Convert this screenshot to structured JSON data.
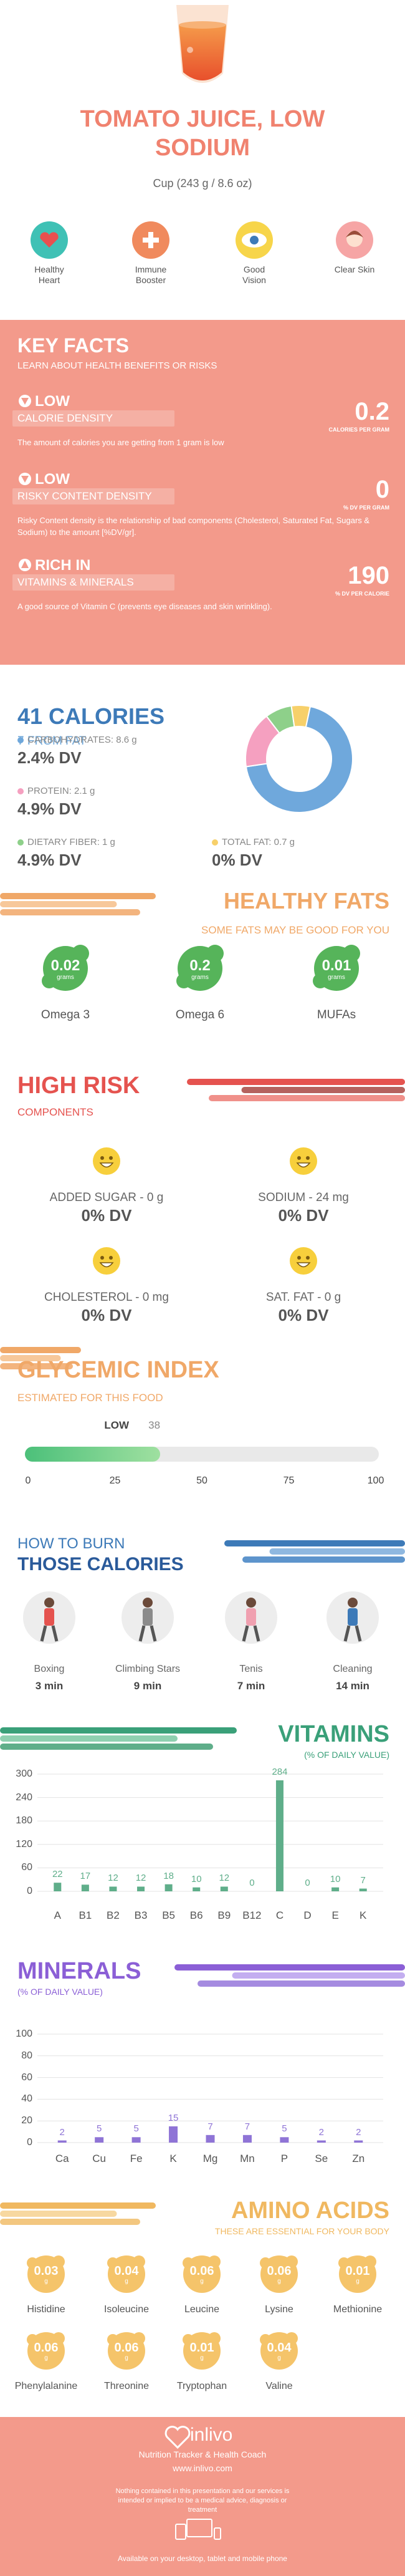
{
  "header": {
    "title": "TOMATO JUICE, LOW SODIUM",
    "serving": "Cup (243 g / 8.6 oz)"
  },
  "benefits": [
    "Healthy Heart",
    "Immune Booster",
    "Good Vision",
    "Clear Skin"
  ],
  "key_facts": {
    "title": "KEY FACTS",
    "subtitle": "LEARN ABOUT HEALTH BENEFITS OR RISKS",
    "items": [
      {
        "level": "LOW",
        "name": "CALORIE DENSITY",
        "value": 0.2,
        "unit": "CALORIES PER GRAM",
        "description": "The amount of calories you are getting from 1 gram is low"
      },
      {
        "level": "LOW",
        "name": "RISKY CONTENT DENSITY",
        "value": 0,
        "unit": "% DV PER GRAM",
        "description": "Risky Content density is the relationship of bad components (Cholesterol, Saturated Fat, Sugars & Sodium) to the amount [%DV/gr]."
      },
      {
        "level": "RICH IN",
        "name": "VITAMINS & MINERALS",
        "value": 190,
        "unit": "% DV PER CALORIE",
        "description": "A good source of Vitamin C (prevents eye diseases and skin wrinkling)."
      }
    ]
  },
  "calories": {
    "title": "41 CALORIES",
    "subtitle": "7 FROM FAT",
    "nutrients": [
      {
        "label": "CARBOHYDRATES: 8.6 g",
        "grams": 8.6,
        "dv": "2.4% DV",
        "color": "#6fa8dc"
      },
      {
        "label": "PROTEIN: 2.1 g",
        "grams": 2.1,
        "dv": "4.9% DV",
        "color": "#f5a0c0"
      },
      {
        "label": "DIETARY FIBER: 1 g",
        "grams": 1,
        "dv": "4.9% DV",
        "color": "#8ed08a"
      },
      {
        "label": "TOTAL FAT: 0.7 g",
        "grams": 0.7,
        "dv": "0% DV",
        "color": "#f7d06a"
      }
    ]
  },
  "healthy_fats": {
    "title": "HEALTHY FATS",
    "subtitle": "SOME FATS MAY BE GOOD FOR YOU",
    "unit": "grams",
    "items": [
      {
        "name": "Omega 3",
        "value": 0.02
      },
      {
        "name": "Omega 6",
        "value": 0.2
      },
      {
        "name": "MUFAs",
        "value": 0.01
      }
    ]
  },
  "high_risk": {
    "title": "HIGH RISK",
    "subtitle": "COMPONENTS",
    "items": [
      {
        "label": "ADDED SUGAR - 0 g",
        "dv": "0% DV"
      },
      {
        "label": "SODIUM - 24 mg",
        "dv": "0% DV"
      },
      {
        "label": "CHOLESTEROL - 0 mg",
        "dv": "0% DV"
      },
      {
        "label": "SAT. FAT - 0 g",
        "dv": "0% DV"
      }
    ]
  },
  "glycemic_index": {
    "title": "GLYCEMIC INDEX",
    "subtitle": "ESTIMATED FOR THIS FOOD",
    "rating": "LOW",
    "value": 38,
    "xlim": [
      0,
      100
    ],
    "xticks": [
      0,
      25,
      50,
      75,
      100
    ]
  },
  "burn": {
    "title_top": "HOW TO BURN",
    "title": "THOSE CALORIES",
    "activities": [
      {
        "name": "Boxing",
        "time": "3 min"
      },
      {
        "name": "Climbing Stars",
        "time": "9 min"
      },
      {
        "name": "Tenis",
        "time": "7 min"
      },
      {
        "name": "Cleaning",
        "time": "14 min"
      }
    ]
  },
  "vitamins": {
    "type": "bar",
    "title": "VITAMINS",
    "subtitle": "(% OF DAILY VALUE)",
    "categories": [
      "A",
      "B1",
      "B2",
      "B3",
      "B5",
      "B6",
      "B9",
      "B12",
      "C",
      "D",
      "E",
      "K"
    ],
    "values": [
      22,
      17,
      12,
      12,
      18,
      10,
      12,
      0,
      284,
      0,
      10,
      7
    ],
    "ylim": [
      0,
      300
    ],
    "yticks": [
      0,
      60,
      120,
      180,
      240,
      300
    ],
    "color": "#5fae8a"
  },
  "minerals": {
    "type": "bar",
    "title": "MINERALS",
    "subtitle": "(% OF DAILY VALUE)",
    "categories": [
      "Ca",
      "Cu",
      "Fe",
      "K",
      "Mg",
      "Mn",
      "P",
      "Se",
      "Zn"
    ],
    "values": [
      2,
      5,
      5,
      15,
      7,
      7,
      5,
      2,
      2
    ],
    "ylim": [
      0,
      100
    ],
    "yticks": [
      0,
      20,
      40,
      60,
      80,
      100
    ],
    "color": "#8f74d6"
  },
  "amino_acids": {
    "title": "AMINO ACIDS",
    "subtitle": "THESE ARE ESSENTIAL FOR YOUR BODY",
    "unit": "g",
    "items": [
      {
        "name": "Histidine",
        "value": 0.03
      },
      {
        "name": "Isoleucine",
        "value": 0.04
      },
      {
        "name": "Leucine",
        "value": 0.06
      },
      {
        "name": "Lysine",
        "value": 0.06
      },
      {
        "name": "Methionine",
        "value": 0.01
      },
      {
        "name": "Phenylalanine",
        "value": 0.06
      },
      {
        "name": "Threonine",
        "value": 0.06
      },
      {
        "name": "Tryptophan",
        "value": 0.01
      },
      {
        "name": "Valine",
        "value": 0.04
      }
    ]
  },
  "footer": {
    "brand": "inlivo",
    "tagline": "Nutrition Tracker & Health Coach",
    "url": "www.inlivo.com",
    "disclaimer": "Nothing contained in this presentation and our services is intended or implied to be a medical advice, diagnosis or treatment",
    "availability": "Available on your desktop, tablet and mobile phone"
  }
}
